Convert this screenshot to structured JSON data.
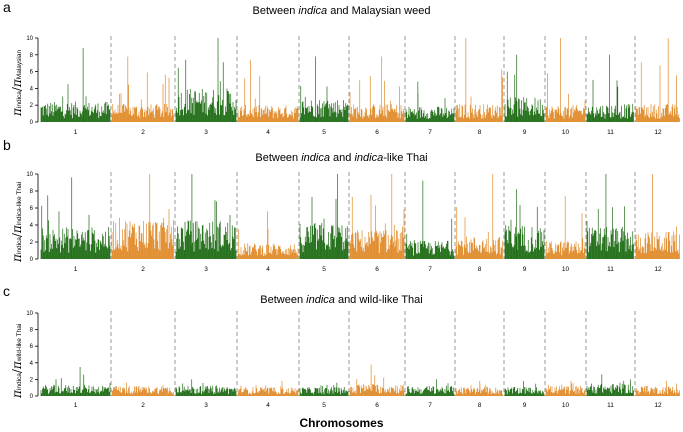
{
  "panels": [
    {
      "letter": "a",
      "title_prefix": "Between ",
      "title_italic": "indica",
      "title_suffix": " and Malaysian weed",
      "ylabel_num_sub": "indica",
      "ylabel_den_sub": "Malaysian"
    },
    {
      "letter": "b",
      "title_prefix": "Between ",
      "title_italic": "indica",
      "title_suffix": " and ",
      "title_italic2": "indica",
      "title_suffix2": "-like Thai",
      "ylabel_num_sub": "indica",
      "ylabel_den_sub": "indica-like Thai"
    },
    {
      "letter": "c",
      "title_prefix": "Between ",
      "title_italic": "indica",
      "title_suffix": " and wild-like Thai",
      "ylabel_num_sub": "indica",
      "ylabel_den_sub": "wild-like Thai"
    }
  ],
  "ylabel_symbol": "π",
  "xlabel": "Chromosomes",
  "colors": {
    "odd": "#1e6b14",
    "even": "#e08a2a",
    "boundary": "#999999"
  },
  "chart_data": [
    {
      "type": "bar",
      "title": "Between indica and Malaysian weed",
      "xlabel": "Chromosomes",
      "ylabel": "π indica / π Malaysian",
      "ylim": [
        0,
        10
      ],
      "yticks": [
        0,
        2,
        4,
        6,
        8,
        10
      ],
      "categories": [
        "1",
        "2",
        "3",
        "4",
        "5",
        "6",
        "7",
        "8",
        "9",
        "10",
        "11",
        "12"
      ],
      "series": [
        {
          "values": [
            1.8,
            1.6,
            3.0,
            1.5,
            2.1,
            1.6,
            1.4,
            1.6,
            2.2,
            1.5,
            1.6,
            1.6
          ]
        }
      ],
      "peak_values": [
        8.8,
        7.8,
        10.0,
        7.4,
        7.8,
        7.8,
        4.8,
        10.0,
        8.0,
        10.0,
        8.0,
        10.0
      ],
      "grid": false
    },
    {
      "type": "bar",
      "title": "Between indica and indica-like Thai",
      "xlabel": "Chromosomes",
      "ylabel": "π indica / π indica-like Thai",
      "ylim": [
        0,
        10
      ],
      "yticks": [
        0,
        2,
        4,
        6,
        8,
        10
      ],
      "categories": [
        "1",
        "2",
        "3",
        "4",
        "5",
        "6",
        "7",
        "8",
        "9",
        "10",
        "11",
        "12"
      ],
      "series": [
        {
          "values": [
            2.8,
            3.6,
            3.4,
            1.4,
            3.2,
            2.6,
            1.6,
            2.0,
            3.0,
            1.6,
            2.8,
            2.4
          ]
        }
      ],
      "peak_values": [
        9.6,
        10.0,
        10.0,
        5.6,
        10.0,
        10.0,
        9.2,
        10.0,
        8.2,
        7.4,
        10.0,
        10.0
      ],
      "grid": false
    },
    {
      "type": "bar",
      "title": "Between indica and wild-like Thai",
      "xlabel": "Chromosomes",
      "ylabel": "π indica / π wild-like Thai",
      "ylim": [
        0,
        10
      ],
      "yticks": [
        0,
        2,
        4,
        6,
        8,
        10
      ],
      "categories": [
        "1",
        "2",
        "3",
        "4",
        "5",
        "6",
        "7",
        "8",
        "9",
        "10",
        "11",
        "12"
      ],
      "series": [
        {
          "values": [
            1.0,
            0.9,
            0.9,
            0.8,
            0.8,
            1.1,
            0.9,
            0.8,
            0.8,
            0.9,
            1.1,
            0.9
          ]
        }
      ],
      "peak_values": [
        3.5,
        1.6,
        2.0,
        1.8,
        1.6,
        3.8,
        2.0,
        1.8,
        1.8,
        1.8,
        2.6,
        1.8
      ],
      "grid": false
    }
  ]
}
